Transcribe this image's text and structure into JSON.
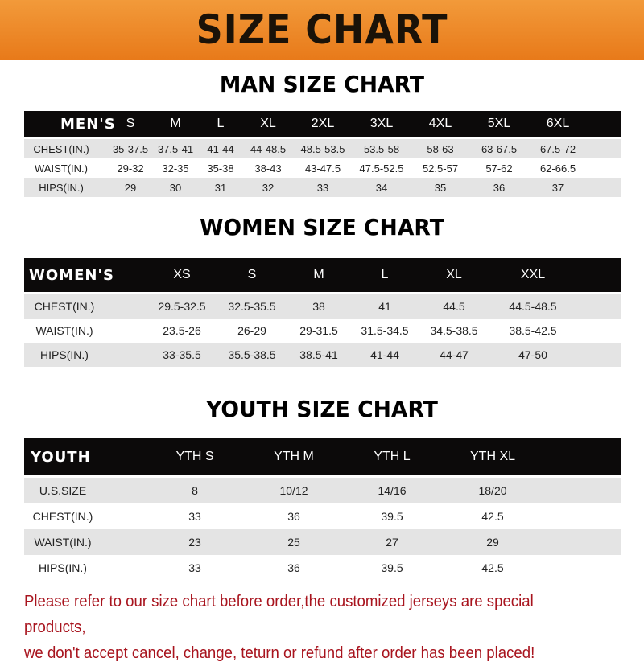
{
  "banner": "SIZE CHART",
  "men": {
    "title": "MAN SIZE CHART",
    "header": [
      "MEN'S",
      "S",
      "M",
      "L",
      "XL",
      "2XL",
      "3XL",
      "4XL",
      "5XL",
      "6XL"
    ],
    "rows": [
      [
        "CHEST(IN.)",
        "35-37.5",
        "37.5-41",
        "41-44",
        "44-48.5",
        "48.5-53.5",
        "53.5-58",
        "58-63",
        "63-67.5",
        "67.5-72"
      ],
      [
        "WAIST(IN.)",
        "29-32",
        "32-35",
        "35-38",
        "38-43",
        "43-47.5",
        "47.5-52.5",
        "52.5-57",
        "57-62",
        "62-66.5"
      ],
      [
        "HIPS(IN.)",
        "29",
        "30",
        "31",
        "32",
        "33",
        "34",
        "35",
        "36",
        "37"
      ]
    ]
  },
  "women": {
    "title": "WOMEN SIZE CHART",
    "header": [
      "WOMEN'S",
      "XS",
      "S",
      "M",
      "L",
      "XL",
      "XXL"
    ],
    "rows": [
      [
        "CHEST(IN.)",
        "29.5-32.5",
        "32.5-35.5",
        "38",
        "41",
        "44.5",
        "44.5-48.5"
      ],
      [
        "WAIST(IN.)",
        "23.5-26",
        "26-29",
        "29-31.5",
        "31.5-34.5",
        "34.5-38.5",
        "38.5-42.5"
      ],
      [
        "HIPS(IN.)",
        "33-35.5",
        "35.5-38.5",
        "38.5-41",
        "41-44",
        "44-47",
        "47-50"
      ]
    ]
  },
  "youth": {
    "title": "YOUTH SIZE CHART",
    "header": [
      "YOUTH",
      "YTH S",
      "YTH M",
      "YTH L",
      "YTH XL"
    ],
    "rows": [
      [
        "U.S.SIZE",
        "8",
        "10/12",
        "14/16",
        "18/20"
      ],
      [
        "CHEST(IN.)",
        "33",
        "36",
        "39.5",
        "42.5"
      ],
      [
        "WAIST(IN.)",
        "23",
        "25",
        "27",
        "29"
      ],
      [
        "HIPS(IN.)",
        "33",
        "36",
        "39.5",
        "42.5"
      ]
    ]
  },
  "note": {
    "line1": "Please refer to our size chart before order,the customized jerseys are special products,",
    "line2": "we don't accept cancel, change, teturn or refund after order has been placed!"
  }
}
